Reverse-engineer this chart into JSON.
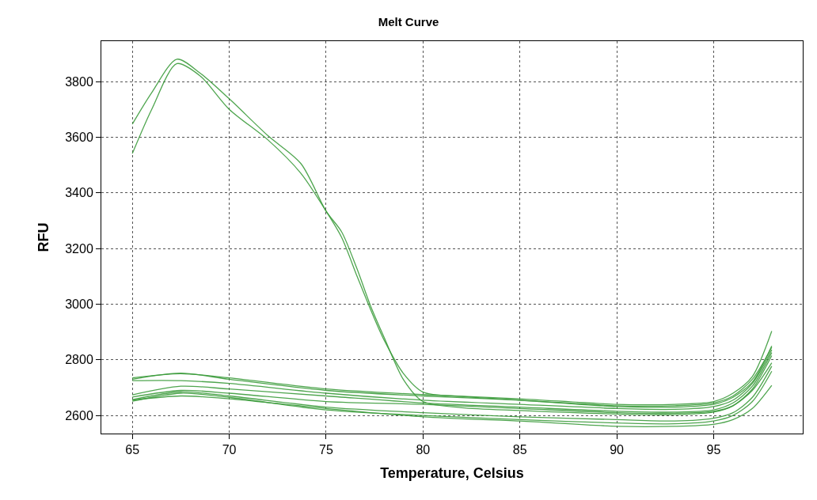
{
  "chart_data": {
    "type": "line",
    "title": "Melt Curve",
    "xlabel": "Temperature, Celsius",
    "ylabel": "RFU",
    "xlim": [
      63.4,
      99.6
    ],
    "xticks": [
      65,
      70,
      75,
      80,
      85,
      90,
      95
    ],
    "ylim": [
      2535,
      3945
    ],
    "yticks": [
      2600,
      2800,
      3000,
      3200,
      3400,
      3600,
      3800
    ],
    "grid": true,
    "line_style": "solid",
    "marker": "none",
    "series": [
      {
        "color": "#3c9c3c",
        "x": [
          65,
          66,
          67.3,
          68.5,
          70,
          72,
          73.7,
          75,
          75.8,
          76.6,
          77.3,
          78,
          79,
          80,
          82,
          85,
          90,
          93,
          95,
          96,
          97,
          98
        ],
        "values": [
          3647,
          3760,
          3880,
          3830,
          3738,
          3605,
          3505,
          3334,
          3260,
          3126,
          2993,
          2880,
          2728,
          2650,
          2628,
          2618,
          2605,
          2603,
          2612,
          2635,
          2695,
          2815
        ]
      },
      {
        "color": "#3c9c3c",
        "x": [
          65,
          66,
          67.3,
          68.5,
          70,
          72,
          73.7,
          75,
          75.8,
          76.6,
          77.3,
          78,
          79,
          80,
          82,
          85,
          90,
          93,
          95,
          96,
          97,
          98
        ],
        "values": [
          3541,
          3700,
          3864,
          3820,
          3700,
          3590,
          3470,
          3334,
          3240,
          3100,
          2980,
          2870,
          2750,
          2684,
          2668,
          2655,
          2632,
          2630,
          2640,
          2665,
          2720,
          2850
        ]
      },
      {
        "color": "#3c9c3c",
        "x": [
          65,
          67.5,
          70,
          75,
          80,
          85,
          90,
          93,
          95,
          96,
          97,
          98
        ],
        "values": [
          2735,
          2750,
          2735,
          2695,
          2675,
          2660,
          2640,
          2640,
          2650,
          2680,
          2740,
          2903
        ]
      },
      {
        "color": "#3c9c3c",
        "x": [
          65,
          67.5,
          70,
          75,
          80,
          85,
          90,
          93,
          95,
          96,
          97,
          98
        ],
        "values": [
          2730,
          2752,
          2730,
          2690,
          2670,
          2655,
          2635,
          2635,
          2645,
          2670,
          2730,
          2845
        ]
      },
      {
        "color": "#3c9c3c",
        "x": [
          65,
          67.5,
          70,
          75,
          80,
          85,
          90,
          93,
          95,
          96,
          97,
          98
        ],
        "values": [
          2725,
          2725,
          2715,
          2680,
          2655,
          2640,
          2625,
          2622,
          2632,
          2655,
          2715,
          2836
        ]
      },
      {
        "color": "#3c9c3c",
        "x": [
          65,
          67.5,
          70,
          75,
          80,
          85,
          90,
          93,
          95,
          96,
          97,
          98
        ],
        "values": [
          2674,
          2705,
          2695,
          2670,
          2645,
          2630,
          2615,
          2612,
          2620,
          2645,
          2705,
          2826
        ]
      },
      {
        "color": "#3c9c3c",
        "x": [
          65,
          67.5,
          70,
          75,
          80,
          85,
          90,
          93,
          95,
          96,
          97,
          98
        ],
        "values": [
          2666,
          2690,
          2680,
          2650,
          2640,
          2625,
          2610,
          2608,
          2615,
          2635,
          2690,
          2789
        ]
      },
      {
        "color": "#3c9c3c",
        "x": [
          65,
          67.5,
          70,
          75,
          80,
          85,
          90,
          93,
          95,
          96,
          97,
          98
        ],
        "values": [
          2657,
          2685,
          2670,
          2630,
          2610,
          2595,
          2585,
          2580,
          2590,
          2610,
          2665,
          2777
        ]
      },
      {
        "color": "#3c9c3c",
        "x": [
          65,
          67.5,
          70,
          75,
          80,
          85,
          90,
          93,
          95,
          96,
          97,
          98
        ],
        "values": [
          2651,
          2680,
          2665,
          2620,
          2600,
          2585,
          2573,
          2570,
          2580,
          2600,
          2650,
          2759
        ]
      },
      {
        "color": "#3c9c3c",
        "x": [
          65,
          67.5,
          70,
          75,
          80,
          85,
          90,
          93,
          95,
          96,
          97,
          98
        ],
        "values": [
          2655,
          2670,
          2660,
          2625,
          2595,
          2580,
          2561,
          2561,
          2568,
          2585,
          2625,
          2708
        ]
      }
    ]
  }
}
